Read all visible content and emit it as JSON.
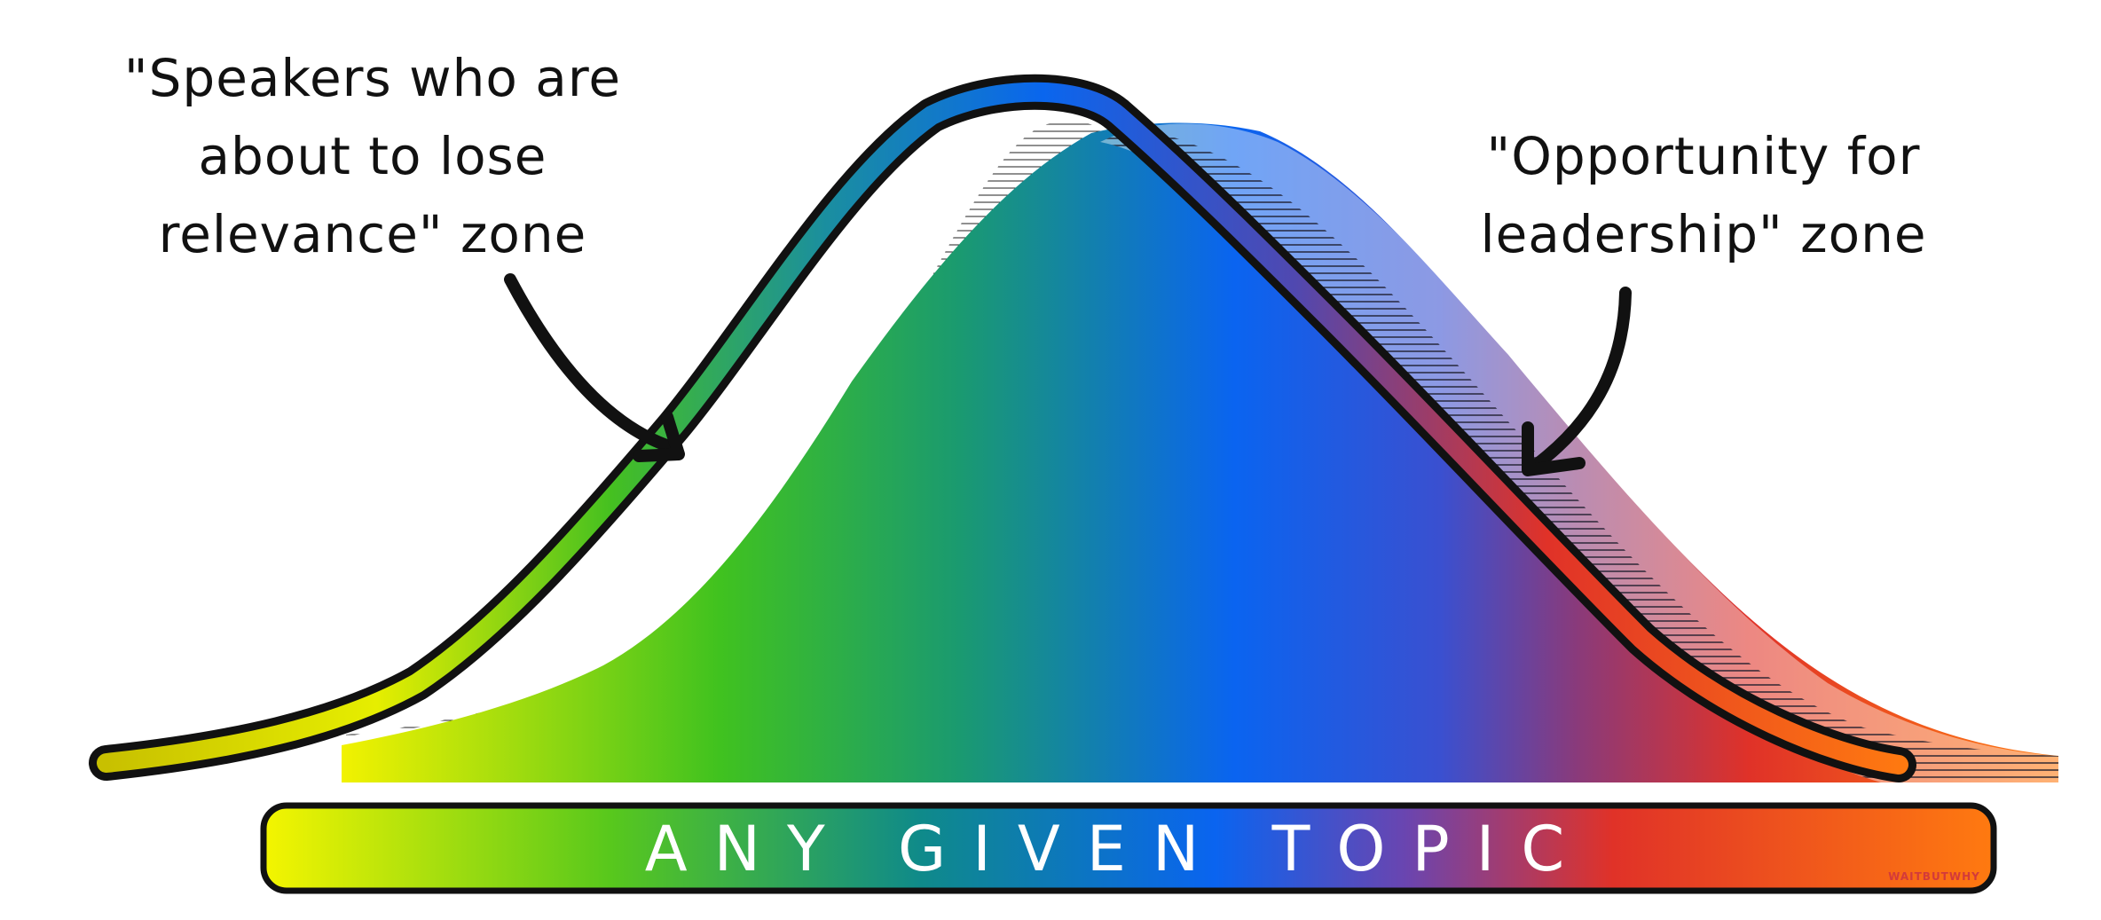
{
  "annotations": {
    "left_zone": {
      "lines": [
        "\"Speakers who are",
        "about to lose",
        "relevance\" zone"
      ]
    },
    "right_zone": {
      "lines": [
        "\"Opportunity for",
        "leadership\" zone"
      ]
    }
  },
  "axis_bar": {
    "label": "ANY GIVEN TOPIC",
    "gradient_colors": [
      "#f5f500",
      "#3cc321",
      "#0a64f0",
      "#e03228",
      "#ff7a10"
    ]
  },
  "signature": "WAITBUTWHY",
  "icons": [
    "left-arrow-icon",
    "right-arrow-icon"
  ]
}
